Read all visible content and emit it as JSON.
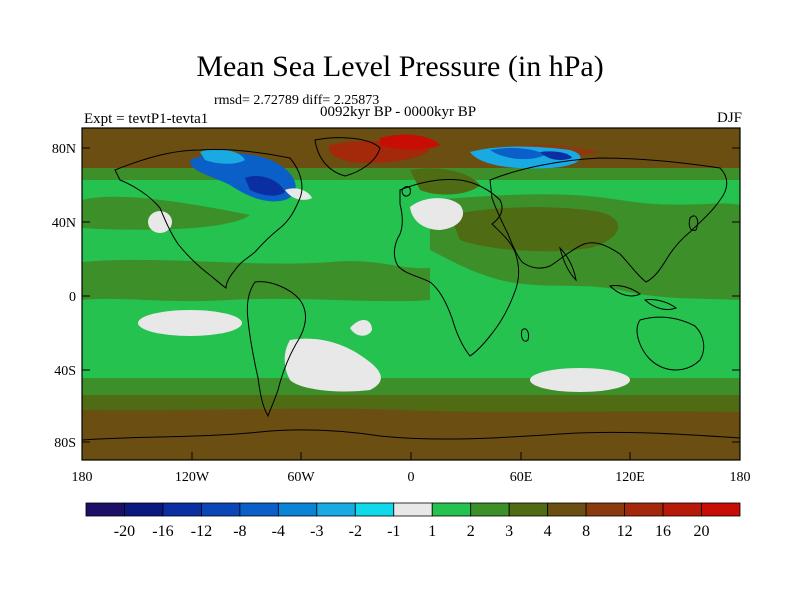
{
  "title": "Mean Sea Level Pressure (in hPa)",
  "stats": "rmsd= 2.72789 diff= 2.25873",
  "experiment": "Expt = tevtP1-tevta1",
  "period": "0092kyr BP - 0000kyr BP",
  "season": "DJF",
  "axes": {
    "lat_labels": [
      "80N",
      "40N",
      "0",
      "40S",
      "80S"
    ],
    "lon_labels": [
      "180",
      "120W",
      "60W",
      "0",
      "60E",
      "120E",
      "180"
    ]
  },
  "colorbar": {
    "labels": [
      "-20",
      "-16",
      "-12",
      "-8",
      "-4",
      "-3",
      "-2",
      "-1",
      "1",
      "2",
      "3",
      "4",
      "8",
      "12",
      "16",
      "20"
    ],
    "colors": [
      "#1b0f66",
      "#0c1880",
      "#0b2ea3",
      "#0a46b8",
      "#0b5fc8",
      "#0b84d6",
      "#19a9e3",
      "#10d9ea",
      "#e8e8e8",
      "#26c24f",
      "#3d8f2a",
      "#4f6b14",
      "#6b4f12",
      "#8a3a0c",
      "#a4280a",
      "#b81a08",
      "#c80d04"
    ]
  },
  "colors": {
    "ocean_green": "#26c24f",
    "land_brown": "#6b4f12",
    "dark_green": "#3d8f2a",
    "olive": "#4f6b14",
    "white_band": "#e8e8e8",
    "blue": "#0b5fc8",
    "deep_blue": "#0b2ea3",
    "cyan": "#19a9e3",
    "red": "#a4280a",
    "coast": "#000000"
  }
}
